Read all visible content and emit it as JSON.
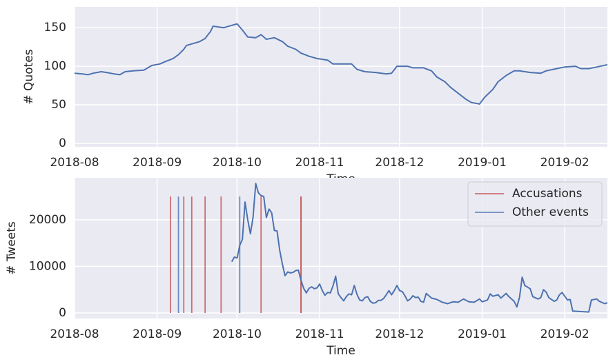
{
  "chart_data": [
    {
      "type": "line",
      "xlabel": "Time",
      "ylabel": "# Quotes",
      "color": "#4c72b0",
      "grid": true,
      "xlim": [
        0,
        200
      ],
      "ylim": [
        -4.5,
        177
      ],
      "yticks": [
        0,
        50,
        100,
        150
      ],
      "xticks": [
        {
          "value": 0,
          "label": "2018-08"
        },
        {
          "value": 31,
          "label": "2018-09"
        },
        {
          "value": 61,
          "label": "2018-10"
        },
        {
          "value": 92,
          "label": "2018-11"
        },
        {
          "value": 122,
          "label": "2018-12"
        },
        {
          "value": 153,
          "label": "2019-01"
        },
        {
          "value": 184,
          "label": "2019-02"
        }
      ],
      "x": [
        0,
        3,
        5,
        7,
        10,
        12,
        15,
        17,
        19,
        22,
        26,
        29,
        32,
        34,
        37,
        39,
        41,
        42,
        44,
        47,
        49,
        51,
        52,
        54,
        56,
        59,
        61,
        63,
        65,
        68,
        70,
        72,
        75,
        78,
        80,
        83,
        85,
        88,
        91,
        95,
        97,
        100,
        104,
        106,
        109,
        113,
        117,
        119,
        121,
        125,
        127,
        131,
        134,
        136,
        139,
        141,
        144,
        147,
        149,
        152,
        154,
        157,
        159,
        162,
        165,
        167,
        171,
        175,
        177,
        181,
        184,
        188,
        190,
        193,
        196,
        200
      ],
      "values": [
        91,
        90,
        89,
        91,
        93,
        92,
        90,
        89,
        93,
        94,
        95,
        101,
        103,
        106,
        110,
        115,
        122,
        127,
        129,
        132,
        136,
        145,
        152,
        151,
        150,
        153,
        155,
        147,
        138,
        137,
        141,
        135,
        137,
        132,
        126,
        122,
        117,
        113,
        110,
        108,
        103,
        103,
        103,
        96,
        93,
        92,
        90,
        91,
        100,
        100,
        98,
        98,
        94,
        86,
        80,
        73,
        65,
        57,
        53,
        51,
        60,
        70,
        80,
        88,
        94,
        94,
        92,
        91,
        94,
        97,
        99,
        100,
        97,
        97,
        99,
        102
      ]
    },
    {
      "type": "line",
      "xlabel": "Time",
      "ylabel": "# Tweets",
      "color": "#4c72b0",
      "grid": true,
      "legend": "upper right",
      "xlim": [
        0,
        200
      ],
      "ylim": [
        -1185,
        29000
      ],
      "yticks": [
        0,
        10000,
        20000
      ],
      "xticks": [
        {
          "value": 0,
          "label": "2018-08"
        },
        {
          "value": 31,
          "label": "2018-09"
        },
        {
          "value": 61,
          "label": "2018-10"
        },
        {
          "value": 92,
          "label": "2018-11"
        },
        {
          "value": 122,
          "label": "2018-12"
        },
        {
          "value": 153,
          "label": "2019-01"
        },
        {
          "value": 184,
          "label": "2019-02"
        }
      ],
      "x": [
        59,
        60,
        61,
        62,
        63,
        64,
        65,
        66,
        67,
        68,
        69,
        70,
        71,
        72,
        73,
        74,
        75,
        76,
        77,
        78,
        79,
        80,
        81,
        82,
        83,
        84,
        85,
        86,
        87,
        88,
        89,
        90,
        91,
        92,
        93,
        94,
        95,
        96,
        97,
        98,
        99,
        100,
        101,
        102,
        103,
        104,
        105,
        106,
        107,
        108,
        109,
        110,
        111,
        112,
        113,
        114,
        115,
        116,
        117,
        118,
        119,
        120,
        121,
        122,
        123,
        124,
        125,
        126,
        127,
        128,
        129,
        130,
        131,
        132,
        133,
        134,
        136,
        138,
        140,
        142,
        144,
        146,
        148,
        150,
        152,
        153,
        155,
        156,
        157,
        159,
        160,
        162,
        163,
        165,
        166,
        167,
        168,
        169,
        171,
        172,
        174,
        175,
        176,
        177,
        178,
        180,
        181,
        182,
        183,
        184,
        185,
        186,
        187,
        193,
        194,
        196,
        197,
        199,
        200
      ],
      "values": [
        11000,
        12000,
        11800,
        14500,
        15800,
        23800,
        20000,
        17000,
        20500,
        27800,
        25800,
        25200,
        25000,
        20500,
        22300,
        21500,
        17700,
        17600,
        13500,
        10500,
        8000,
        8800,
        8600,
        8700,
        9100,
        9200,
        7000,
        5300,
        4300,
        5300,
        5600,
        5200,
        5400,
        6200,
        4800,
        3800,
        4400,
        4300,
        5800,
        7900,
        4100,
        3300,
        2600,
        3500,
        4100,
        3900,
        5900,
        4000,
        2800,
        2600,
        3300,
        3500,
        2500,
        2100,
        2200,
        2700,
        2700,
        3100,
        3900,
        4800,
        3900,
        4800,
        5900,
        4800,
        4600,
        3700,
        2600,
        3000,
        3700,
        3300,
        3400,
        2500,
        2300,
        4200,
        3700,
        3200,
        2900,
        2300,
        2000,
        2400,
        2300,
        3000,
        2400,
        2300,
        3000,
        2400,
        2800,
        4100,
        3600,
        3900,
        3200,
        4200,
        3500,
        2500,
        1300,
        3300,
        7700,
        5900,
        5200,
        3500,
        3000,
        3300,
        5000,
        4500,
        3300,
        2500,
        2800,
        3900,
        4400,
        3600,
        2800,
        2900,
        400,
        200,
        2800,
        3000,
        2500,
        2000,
        2200
      ],
      "series": [
        {
          "name": "Accusations",
          "color": "#c44e52",
          "x": [
            36,
            41,
            44,
            49,
            55,
            70,
            85,
            85
          ],
          "values": [
            25000,
            25000,
            25000,
            25000,
            25000,
            25000,
            25000,
            25000
          ]
        },
        {
          "name": "Other events",
          "color": "#4c72b0",
          "x": [
            39,
            62
          ],
          "values": [
            25000,
            25000
          ]
        }
      ]
    }
  ]
}
